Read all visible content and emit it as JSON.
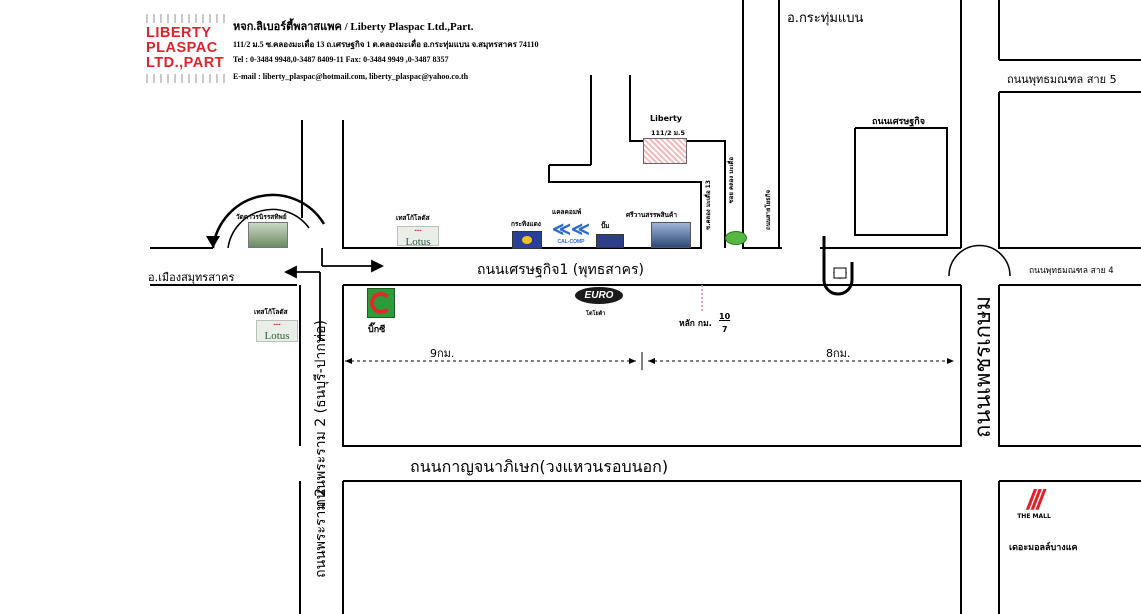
{
  "company": {
    "logo_lines": [
      "LIBERTY",
      "PLASPAC",
      "LTD.,PART"
    ],
    "name": "หจก.ลิเบอร์ตี้พลาสแพค / Liberty Plaspac Ltd.,Part.",
    "address": "111/2 ม.5 ซ.คลองมะเดื่อ 13 ถ.เศรษฐกิจ 1 ต.คลองมะเดื่อ อ.กระทุ่มแบน จ.สมุทรสาคร 74110",
    "phone": "Tel : 0-3484 9948,0-3487 8409-11  Fax: 0-3484 9949 ,0-3487 8357",
    "email": "E-mail : liberty_plaspac@hotmail.com, liberty_plaspac@yahoo.co.th"
  },
  "roads": {
    "kratumbaen": "อ.กระทุ่มแบน",
    "phutthamonthon5": "ถนนพุทธมณฑล สาย 5",
    "setthakit_small": "ถนนเศรษฐกิจ",
    "setthakit1": "ถนนเศรษฐกิจ1 (พุทธสาคร)",
    "mueang_samutsakhon": "อ.เมืองสมุทรสาคร",
    "phutthamonthon4": "ถนนพุทธมณฑล สาย 4",
    "phetkasem": "ถนนเพชรเกษม",
    "kanchanaphisek": "ถนนกาญจนาภิเษก(วงแหวนรอบนอก)",
    "phraram2_top": "ถนนพระราม 2 (ธนบุรี-ปากท่อ)",
    "phraram2_bottom": "ถนนพระราม 2",
    "soi_khlong13": "ซ.คลอง มะเดื่อ 13",
    "soi_khlong": "ซอย คลอง มะเดื่อ",
    "soi_side": "ถนนสายโยธกิจ"
  },
  "places": {
    "liberty": "Liberty",
    "liberty_addr": "111/2 ม.5",
    "wat": "วัดดาวรนิรรสทิพย์",
    "lotus_top_label": "เทสโก้โลตัส",
    "lotus_top": "Lotus",
    "krathing": "กระทิงแดง",
    "calcomp": "แคลคอมพ์",
    "pump": "ปั๊ม",
    "sriwanna": "ศรีวานสรรพสินค้า",
    "lotus_left_label": "เทสโก้โลตัส",
    "lotus_left": "Lotus",
    "bigc": "บิ๊กซี",
    "euro": "โตโยต้า",
    "km_marker": "หลัก กม.",
    "km_num": "10",
    "km_den": "7",
    "mall_logo": "THE MALL",
    "mall": "เดอะมอลล์บางแค"
  },
  "distances": {
    "left": "9กม.",
    "right": "8กม."
  },
  "colors": {
    "brand_red": "#e0232a",
    "lotus_green": "#2d5d3a",
    "road_line": "#000000",
    "marker_pink": "#e88aa8"
  }
}
